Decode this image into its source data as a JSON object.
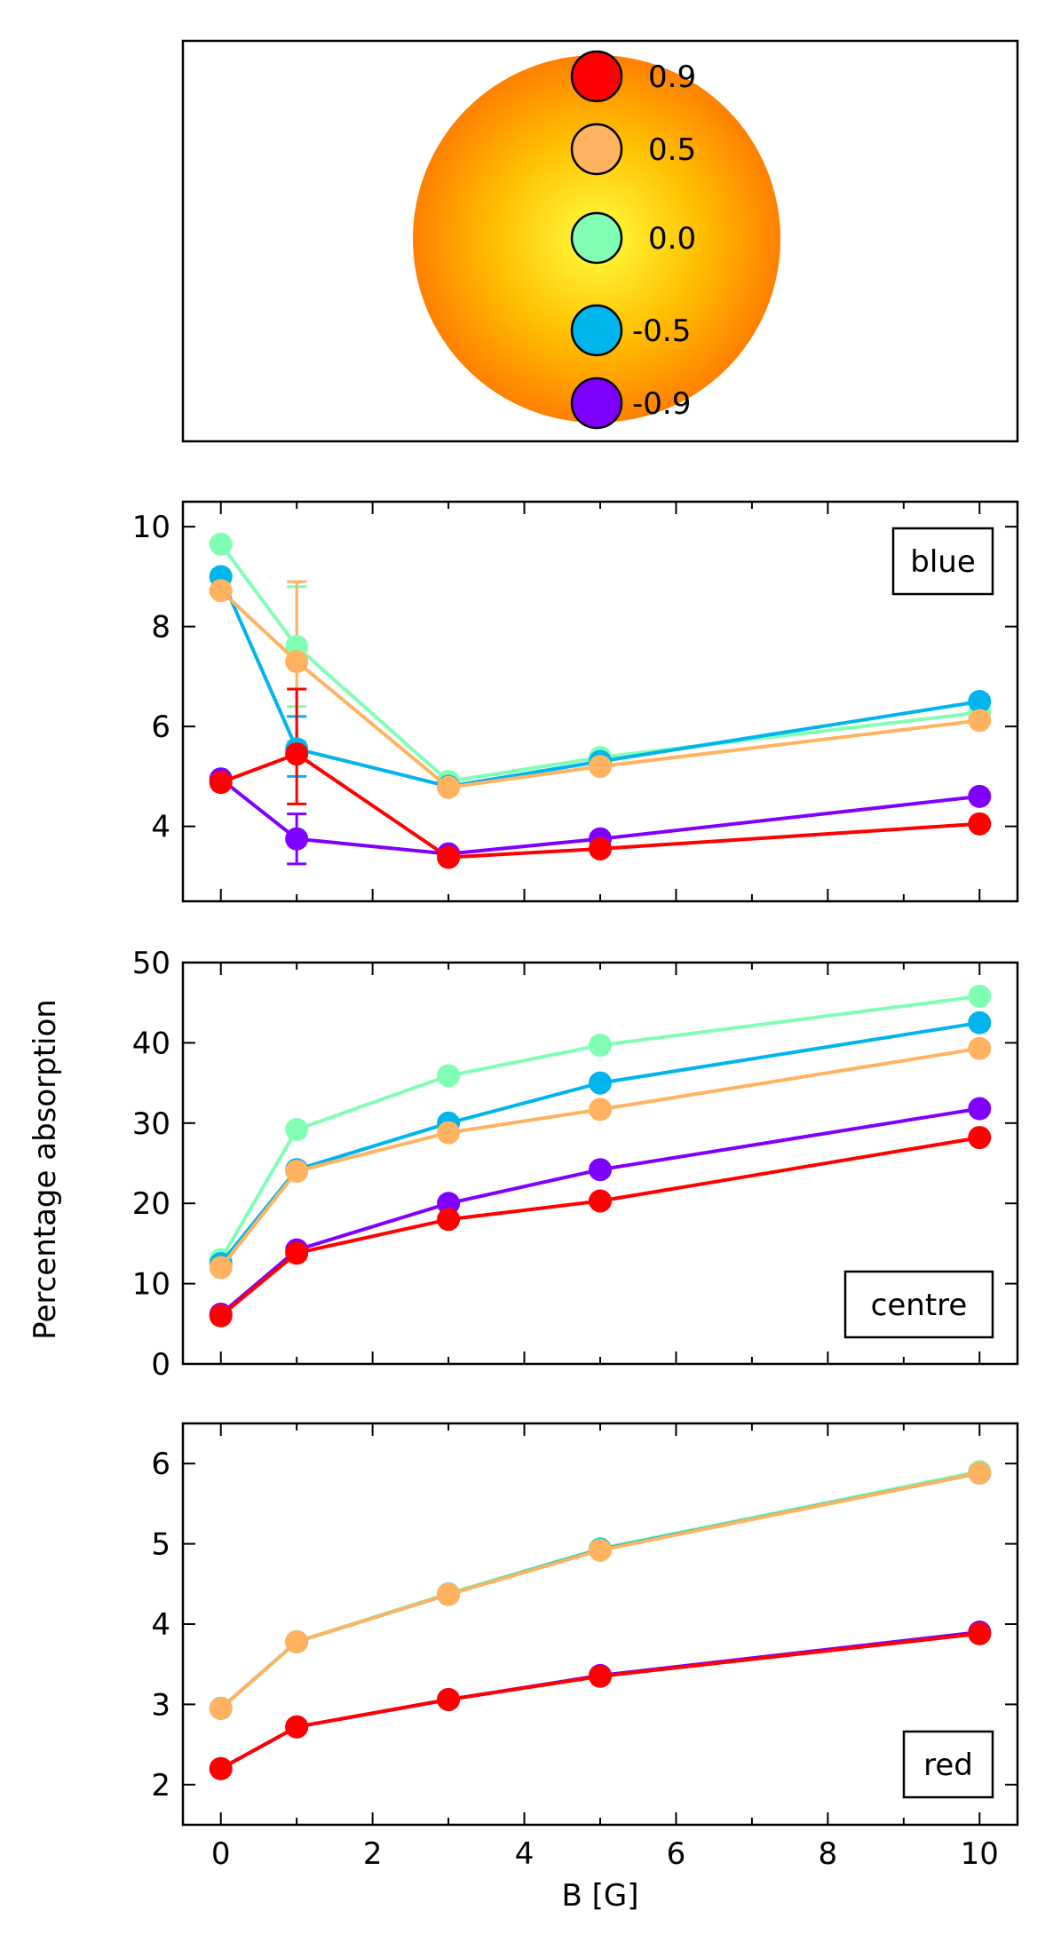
{
  "figure": {
    "ylabel_shared": "Percentage absorption",
    "xlabel": "B [G]"
  },
  "legend": {
    "items": [
      {
        "label": "0.9",
        "color": "#ff0000"
      },
      {
        "label": "0.5",
        "color": "#ffb360"
      },
      {
        "label": "0.0",
        "color": "#80ffb4"
      },
      {
        "label": "-0.5",
        "color": "#00b4ec"
      },
      {
        "label": "-0.9",
        "color": "#8000ff"
      }
    ],
    "star_colors": {
      "center": "#ffff40",
      "mid": "#ffc000",
      "edge": "#ff8000"
    }
  },
  "chart_data": [
    {
      "type": "line",
      "title": "blue",
      "xlabel": "",
      "ylabel": "",
      "xlim": [
        -0.5,
        10.5
      ],
      "ylim": [
        2.5,
        10.5
      ],
      "xticks": [
        0,
        2,
        4,
        6,
        8,
        10
      ],
      "yticks": [
        4,
        6,
        8,
        10
      ],
      "x": [
        0,
        1,
        3,
        5,
        10
      ],
      "series": [
        {
          "name": "0.0",
          "color": "#80ffb4",
          "values": [
            9.65,
            7.6,
            4.9,
            5.38,
            6.28
          ]
        },
        {
          "name": "-0.5",
          "color": "#00b4ec",
          "values": [
            9.0,
            5.55,
            4.8,
            5.3,
            6.5
          ]
        },
        {
          "name": "0.5",
          "color": "#ffb360",
          "values": [
            8.72,
            7.3,
            4.78,
            5.2,
            6.12
          ]
        },
        {
          "name": "-0.9",
          "color": "#8000ff",
          "values": [
            4.95,
            3.75,
            3.45,
            3.75,
            4.6
          ]
        },
        {
          "name": "0.9",
          "color": "#ff0000",
          "values": [
            4.88,
            5.45,
            3.38,
            3.55,
            4.05
          ]
        }
      ],
      "errorbars_at_x1": [
        {
          "color": "#80ffb4",
          "low": 6.4,
          "high": 8.8
        },
        {
          "color": "#ffb360",
          "low": 5.7,
          "high": 8.9
        },
        {
          "color": "#00b4ec",
          "low": 5.0,
          "high": 6.2
        },
        {
          "color": "#8000ff",
          "low": 3.25,
          "high": 4.25
        },
        {
          "color": "#ff0000",
          "low": 4.45,
          "high": 6.75
        }
      ]
    },
    {
      "type": "line",
      "title": "centre",
      "xlabel": "",
      "ylabel": "Percentage absorption",
      "xlim": [
        -0.5,
        10.5
      ],
      "ylim": [
        0,
        50
      ],
      "xticks": [
        0,
        2,
        4,
        6,
        8,
        10
      ],
      "yticks": [
        0,
        10,
        20,
        30,
        40,
        50
      ],
      "x": [
        0,
        1,
        3,
        5,
        10
      ],
      "series": [
        {
          "name": "0.0",
          "color": "#80ffb4",
          "values": [
            13.0,
            29.2,
            35.9,
            39.7,
            45.8
          ]
        },
        {
          "name": "-0.5",
          "color": "#00b4ec",
          "values": [
            12.5,
            24.2,
            30.0,
            35.0,
            42.5
          ]
        },
        {
          "name": "0.5",
          "color": "#ffb360",
          "values": [
            12.0,
            24.0,
            28.8,
            31.7,
            39.3
          ]
        },
        {
          "name": "-0.9",
          "color": "#8000ff",
          "values": [
            6.2,
            14.2,
            20.0,
            24.2,
            31.8
          ]
        },
        {
          "name": "0.9",
          "color": "#ff0000",
          "values": [
            6.0,
            13.8,
            18.0,
            20.3,
            28.2
          ]
        }
      ]
    },
    {
      "type": "line",
      "title": "red",
      "xlabel": "B [G]",
      "ylabel": "",
      "xlim": [
        -0.5,
        10.5
      ],
      "ylim": [
        1.5,
        6.5
      ],
      "xticks": [
        0,
        2,
        4,
        6,
        8,
        10
      ],
      "yticks": [
        2,
        3,
        4,
        5,
        6
      ],
      "x": [
        0,
        1,
        3,
        5,
        10
      ],
      "series": [
        {
          "name": "0.0",
          "color": "#80ffb4",
          "values": [
            2.95,
            3.78,
            4.38,
            4.94,
            5.9
          ]
        },
        {
          "name": "-0.5",
          "color": "#00b4ec",
          "values": [
            2.95,
            3.78,
            4.37,
            4.93,
            5.88
          ]
        },
        {
          "name": "0.5",
          "color": "#ffb360",
          "values": [
            2.95,
            3.78,
            4.37,
            4.92,
            5.88
          ]
        },
        {
          "name": "-0.9",
          "color": "#8000ff",
          "values": [
            2.2,
            2.72,
            3.06,
            3.36,
            3.9
          ]
        },
        {
          "name": "0.9",
          "color": "#ff0000",
          "values": [
            2.2,
            2.72,
            3.06,
            3.35,
            3.88
          ]
        }
      ]
    }
  ]
}
